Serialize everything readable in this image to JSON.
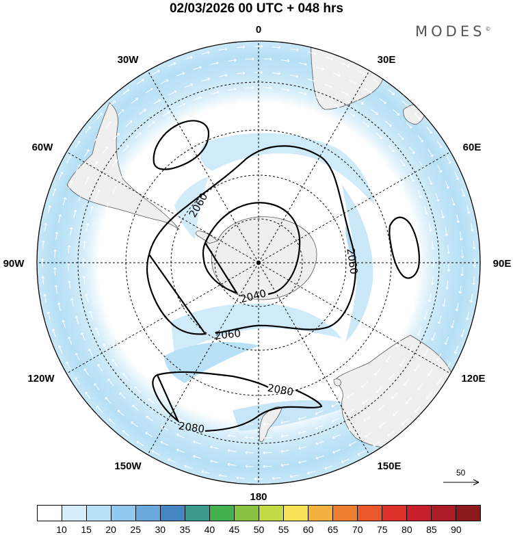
{
  "header": {
    "title": "02/03/2026  00 UTC  + 048 hrs",
    "brand": "MODES",
    "brand_mark": "©"
  },
  "map": {
    "projection": "south-polar-stereographic",
    "longitude_labels": [
      "0",
      "30E",
      "60E",
      "90E",
      "120E",
      "150E",
      "180",
      "150W",
      "120W",
      "90W",
      "60W",
      "30W"
    ],
    "contour_labels": [
      "2040",
      "2060",
      "2060",
      "2060",
      "2080",
      "2080"
    ],
    "colors": {
      "land": "#efefef",
      "coast": "#555555",
      "wind_light": "#cbe8f8",
      "wind_mid": "#a9d7f2",
      "contour": "#000000",
      "grid": "#000000",
      "vector": "#ffffff"
    }
  },
  "reference_vector": {
    "value": "50",
    "icon": "arrow-right-icon"
  },
  "colorbar": {
    "colors": [
      "#ffffff",
      "#d6eef9",
      "#b8e1f7",
      "#8fc9ef",
      "#68a8db",
      "#4585c2",
      "#3a9a8c",
      "#44b04e",
      "#86c43f",
      "#c2da44",
      "#f7e154",
      "#f3b13f",
      "#ef8032",
      "#e8582b",
      "#dd322a",
      "#c7202a",
      "#ab1c24",
      "#8d1a1c"
    ],
    "labels": [
      "10",
      "15",
      "20",
      "25",
      "30",
      "35",
      "40",
      "45",
      "50",
      "55",
      "60",
      "65",
      "70",
      "75",
      "80",
      "85",
      "90"
    ]
  }
}
